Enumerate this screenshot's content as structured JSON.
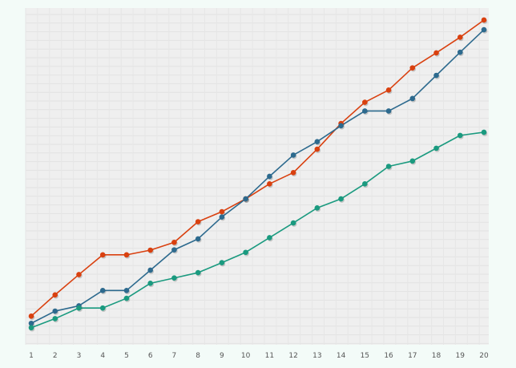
{
  "chart_data": {
    "type": "line",
    "title": "",
    "xlabel": "",
    "ylabel": "",
    "x": [
      1,
      2,
      3,
      4,
      5,
      6,
      7,
      8,
      9,
      10,
      11,
      12,
      13,
      14,
      15,
      16,
      17,
      18,
      19,
      20
    ],
    "ylim": [
      0,
      100
    ],
    "grid": true,
    "legend": "none",
    "series": [
      {
        "color": "#d9400f",
        "values": [
          3.0,
          9.8,
          16.3,
          22.6,
          22.6,
          24.1,
          26.6,
          33.2,
          36.4,
          40.5,
          45.3,
          48.9,
          56.4,
          64.6,
          71.4,
          75.3,
          82.4,
          87.2,
          92.2,
          97.7
        ]
      },
      {
        "color": "#2d6a8e",
        "values": [
          0.7,
          4.6,
          6.3,
          11.2,
          11.2,
          17.7,
          24.2,
          27.7,
          34.7,
          40.5,
          47.7,
          54.5,
          58.8,
          63.9,
          68.6,
          68.6,
          72.6,
          80.0,
          87.4,
          94.6
        ]
      },
      {
        "color": "#1a9a7f",
        "values": [
          -0.7,
          2.2,
          5.6,
          5.6,
          8.7,
          13.5,
          15.2,
          16.9,
          20.1,
          23.4,
          28.1,
          32.8,
          37.6,
          40.5,
          45.3,
          50.9,
          52.6,
          56.7,
          60.8,
          61.8
        ]
      }
    ]
  }
}
